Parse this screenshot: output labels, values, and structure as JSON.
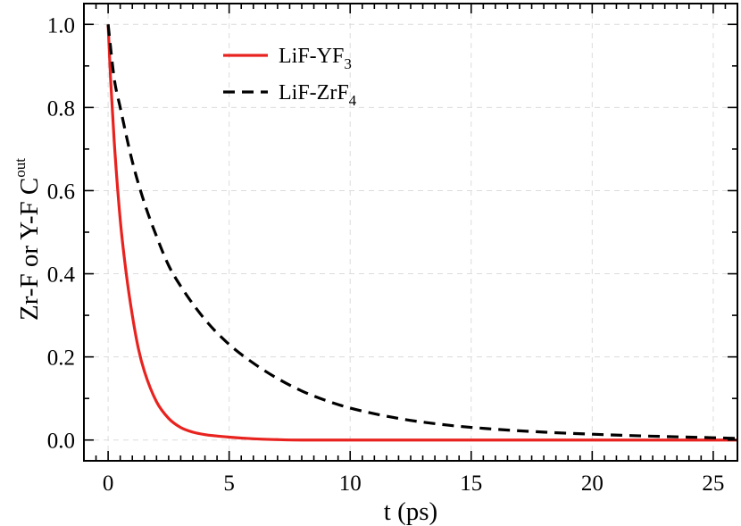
{
  "chart_data": {
    "type": "line",
    "title": "",
    "xlabel": "t (ps)",
    "ylabel": {
      "prefix": "Zr-F or Y-F C",
      "superscript": "out"
    },
    "xlim": [
      -1,
      26
    ],
    "ylim": [
      -0.05,
      1.05
    ],
    "grid": true,
    "legend_position": "top-center",
    "x_major_ticks": [
      0,
      5,
      10,
      15,
      20,
      25
    ],
    "x_tick_labels": [
      "0",
      "5",
      "10",
      "15",
      "20",
      "25"
    ],
    "y_major_ticks": [
      0.0,
      0.2,
      0.4,
      0.6,
      0.8,
      1.0
    ],
    "y_tick_labels": [
      "0.0",
      "0.2",
      "0.4",
      "0.6",
      "0.8",
      "1.0"
    ],
    "series": [
      {
        "name": "LiF-YF",
        "name_subscript": "3",
        "color": "#e8231f",
        "style": "solid",
        "x": [
          0,
          0.1,
          0.25,
          0.5,
          0.75,
          1.0,
          1.25,
          1.5,
          2.0,
          2.5,
          3.0,
          3.5,
          4.0,
          5.0,
          6.0,
          7.0,
          8.0,
          10.0,
          15.0,
          20.0,
          26.0
        ],
        "y": [
          1.0,
          0.87,
          0.72,
          0.53,
          0.4,
          0.3,
          0.22,
          0.165,
          0.092,
          0.052,
          0.03,
          0.019,
          0.013,
          0.007,
          0.003,
          0.001,
          0.0,
          0.0,
          0.0,
          0.0,
          0.0
        ]
      },
      {
        "name": "LiF-ZrF",
        "name_subscript": "4",
        "color": "#000000",
        "style": "dashed",
        "x": [
          0,
          0.25,
          0.5,
          1.0,
          1.5,
          2.0,
          2.5,
          3.0,
          4.0,
          5.0,
          6.0,
          7.0,
          8.0,
          9.0,
          10.0,
          12.0,
          14.0,
          16.0,
          18.0,
          20.0,
          22.0,
          24.0,
          26.0
        ],
        "y": [
          1.0,
          0.87,
          0.8,
          0.67,
          0.57,
          0.49,
          0.42,
          0.37,
          0.29,
          0.23,
          0.185,
          0.148,
          0.118,
          0.095,
          0.077,
          0.052,
          0.036,
          0.026,
          0.019,
          0.014,
          0.01,
          0.007,
          0.004
        ]
      }
    ]
  }
}
